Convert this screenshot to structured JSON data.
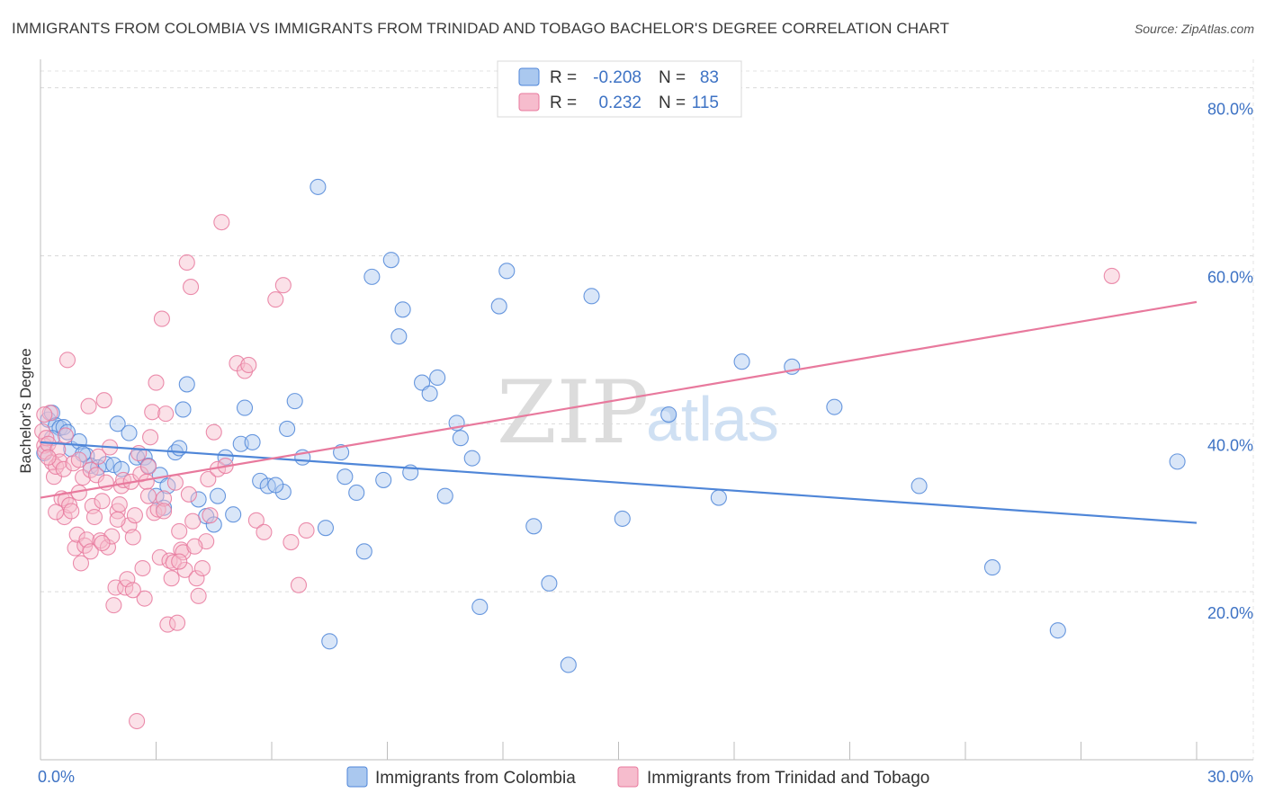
{
  "title": "IMMIGRANTS FROM COLOMBIA VS IMMIGRANTS FROM TRINIDAD AND TOBAGO BACHELOR'S DEGREE CORRELATION CHART",
  "source": "Source: ZipAtlas.com",
  "watermark": {
    "zip": "ZIP",
    "atlas": "atlas"
  },
  "legend": {
    "r_label": "R =",
    "n_label": "N =",
    "rows": [
      {
        "r": "-0.208",
        "n": "83",
        "fill": "#aac8ef",
        "stroke": "#4f86d8"
      },
      {
        "r": "0.232",
        "n": "115",
        "fill": "#f6bccd",
        "stroke": "#e8799d"
      }
    ]
  },
  "chart_data": {
    "type": "scatter",
    "title": "IMMIGRANTS FROM COLOMBIA VS IMMIGRANTS FROM TRINIDAD AND TOBAGO BACHELOR'S DEGREE CORRELATION CHART",
    "xlabel": "",
    "ylabel": "Bachelor's Degree",
    "xlim": [
      0,
      30
    ],
    "ylim": [
      0,
      82
    ],
    "x_ticks_labeled": [
      "0.0%",
      "30.0%"
    ],
    "y_ticks": [
      20,
      40,
      60,
      80
    ],
    "y_tick_labels": [
      "20.0%",
      "40.0%",
      "60.0%",
      "80.0%"
    ],
    "grid": true,
    "legend_position": "top-center",
    "series": [
      {
        "name": "Immigrants from Colombia",
        "color": "#4f86d8",
        "fill": "#aac8ef",
        "r": -0.208,
        "n": 83,
        "trend": [
          [
            0,
            37.8
          ],
          [
            30,
            28.2
          ]
        ],
        "points": [
          [
            0.1,
            36.5
          ],
          [
            0.2,
            40.5
          ],
          [
            0.3,
            41.3
          ],
          [
            0.4,
            39.8
          ],
          [
            0.5,
            39.5
          ],
          [
            0.6,
            39.6
          ],
          [
            0.7,
            39.0
          ],
          [
            0.8,
            37.0
          ],
          [
            1.0,
            37.9
          ],
          [
            1.2,
            36.2
          ],
          [
            1.3,
            35.0
          ],
          [
            1.5,
            34.8
          ],
          [
            1.7,
            35.2
          ],
          [
            1.9,
            35.1
          ],
          [
            2.0,
            40.0
          ],
          [
            2.1,
            34.6
          ],
          [
            2.3,
            38.9
          ],
          [
            2.5,
            36.0
          ],
          [
            2.7,
            36.0
          ],
          [
            2.8,
            35.0
          ],
          [
            3.0,
            31.4
          ],
          [
            3.1,
            33.9
          ],
          [
            3.2,
            30.0
          ],
          [
            3.3,
            32.6
          ],
          [
            3.5,
            36.6
          ],
          [
            3.6,
            37.1
          ],
          [
            3.7,
            41.7
          ],
          [
            3.8,
            44.7
          ],
          [
            4.1,
            31.0
          ],
          [
            4.3,
            29.0
          ],
          [
            4.5,
            28.0
          ],
          [
            4.6,
            31.4
          ],
          [
            4.8,
            36.0
          ],
          [
            5.0,
            29.2
          ],
          [
            5.2,
            37.6
          ],
          [
            5.3,
            41.9
          ],
          [
            5.5,
            37.8
          ],
          [
            5.7,
            33.2
          ],
          [
            5.9,
            32.6
          ],
          [
            6.3,
            31.9
          ],
          [
            6.4,
            39.4
          ],
          [
            6.6,
            42.7
          ],
          [
            6.8,
            36.0
          ],
          [
            7.2,
            68.2
          ],
          [
            7.4,
            27.6
          ],
          [
            7.5,
            14.1
          ],
          [
            7.8,
            36.6
          ],
          [
            7.9,
            33.7
          ],
          [
            8.2,
            31.8
          ],
          [
            8.4,
            24.8
          ],
          [
            8.6,
            57.5
          ],
          [
            8.9,
            33.3
          ],
          [
            9.1,
            59.5
          ],
          [
            9.3,
            50.4
          ],
          [
            9.6,
            34.2
          ],
          [
            9.9,
            44.9
          ],
          [
            10.1,
            43.6
          ],
          [
            10.3,
            45.5
          ],
          [
            10.5,
            31.4
          ],
          [
            10.8,
            40.1
          ],
          [
            10.9,
            38.3
          ],
          [
            11.2,
            35.9
          ],
          [
            11.4,
            18.2
          ],
          [
            12.1,
            58.2
          ],
          [
            12.8,
            27.8
          ],
          [
            13.2,
            21.0
          ],
          [
            13.7,
            11.3
          ],
          [
            14.3,
            55.2
          ],
          [
            15.1,
            28.7
          ],
          [
            16.3,
            41.1
          ],
          [
            17.6,
            31.2
          ],
          [
            18.2,
            47.4
          ],
          [
            19.5,
            46.8
          ],
          [
            20.6,
            42.0
          ],
          [
            22.8,
            32.6
          ],
          [
            24.7,
            22.9
          ],
          [
            26.4,
            15.4
          ],
          [
            29.5,
            35.5
          ],
          [
            0.3,
            38.3
          ],
          [
            1.1,
            36.4
          ],
          [
            6.1,
            32.7
          ],
          [
            9.4,
            53.6
          ],
          [
            11.9,
            54.0
          ]
        ]
      },
      {
        "name": "Immigrants from Trinidad and Tobago",
        "color": "#e8799d",
        "fill": "#f6bccd",
        "r": 0.232,
        "n": 115,
        "trend": [
          [
            0,
            31.2
          ],
          [
            30,
            54.5
          ]
        ],
        "points": [
          [
            0.05,
            39.1
          ],
          [
            0.1,
            37.4
          ],
          [
            0.12,
            36.7
          ],
          [
            0.15,
            38.3
          ],
          [
            0.2,
            37.6
          ],
          [
            0.25,
            41.3
          ],
          [
            0.3,
            35.4
          ],
          [
            0.35,
            33.7
          ],
          [
            0.4,
            34.9
          ],
          [
            0.45,
            36.9
          ],
          [
            0.5,
            35.5
          ],
          [
            0.55,
            31.1
          ],
          [
            0.6,
            34.6
          ],
          [
            0.62,
            28.9
          ],
          [
            0.65,
            30.9
          ],
          [
            0.7,
            47.6
          ],
          [
            0.75,
            30.3
          ],
          [
            0.8,
            29.6
          ],
          [
            0.85,
            35.3
          ],
          [
            0.9,
            25.2
          ],
          [
            0.95,
            26.8
          ],
          [
            1.0,
            35.7
          ],
          [
            1.05,
            23.4
          ],
          [
            1.1,
            33.6
          ],
          [
            1.15,
            25.5
          ],
          [
            1.2,
            26.2
          ],
          [
            1.25,
            42.1
          ],
          [
            1.3,
            34.5
          ],
          [
            1.35,
            30.2
          ],
          [
            1.4,
            28.9
          ],
          [
            1.45,
            33.9
          ],
          [
            1.5,
            36.1
          ],
          [
            1.55,
            26.1
          ],
          [
            1.6,
            30.8
          ],
          [
            1.65,
            42.8
          ],
          [
            1.7,
            33.0
          ],
          [
            1.75,
            25.3
          ],
          [
            1.8,
            37.2
          ],
          [
            1.85,
            26.6
          ],
          [
            1.9,
            18.4
          ],
          [
            1.95,
            20.5
          ],
          [
            2.0,
            29.6
          ],
          [
            2.05,
            30.4
          ],
          [
            2.1,
            32.6
          ],
          [
            2.15,
            33.3
          ],
          [
            2.2,
            20.5
          ],
          [
            2.25,
            21.5
          ],
          [
            2.3,
            27.9
          ],
          [
            2.35,
            33.1
          ],
          [
            2.4,
            26.5
          ],
          [
            2.45,
            29.1
          ],
          [
            2.5,
            4.6
          ],
          [
            2.55,
            36.5
          ],
          [
            2.6,
            34.0
          ],
          [
            2.65,
            22.8
          ],
          [
            2.7,
            19.2
          ],
          [
            2.75,
            33.1
          ],
          [
            2.8,
            34.9
          ],
          [
            2.85,
            38.4
          ],
          [
            2.9,
            41.4
          ],
          [
            2.95,
            29.4
          ],
          [
            3.0,
            44.9
          ],
          [
            3.05,
            29.8
          ],
          [
            3.1,
            24.1
          ],
          [
            3.15,
            52.5
          ],
          [
            3.2,
            31.1
          ],
          [
            3.25,
            41.2
          ],
          [
            3.3,
            16.1
          ],
          [
            3.35,
            23.7
          ],
          [
            3.4,
            21.6
          ],
          [
            3.45,
            23.5
          ],
          [
            3.5,
            33.0
          ],
          [
            3.55,
            16.3
          ],
          [
            3.6,
            27.2
          ],
          [
            3.65,
            25.0
          ],
          [
            3.7,
            24.7
          ],
          [
            3.75,
            22.6
          ],
          [
            3.8,
            59.2
          ],
          [
            3.85,
            31.6
          ],
          [
            3.9,
            56.3
          ],
          [
            3.95,
            28.4
          ],
          [
            4.05,
            21.6
          ],
          [
            4.1,
            19.5
          ],
          [
            4.2,
            22.8
          ],
          [
            4.3,
            26.0
          ],
          [
            4.35,
            33.4
          ],
          [
            4.4,
            29.1
          ],
          [
            4.5,
            39.0
          ],
          [
            4.6,
            34.6
          ],
          [
            4.7,
            64.0
          ],
          [
            4.8,
            35.0
          ],
          [
            5.1,
            47.2
          ],
          [
            5.3,
            46.3
          ],
          [
            5.4,
            47.0
          ],
          [
            5.6,
            28.5
          ],
          [
            5.8,
            27.1
          ],
          [
            6.1,
            54.8
          ],
          [
            6.3,
            56.5
          ],
          [
            6.5,
            25.9
          ],
          [
            6.7,
            20.8
          ],
          [
            6.9,
            27.3
          ],
          [
            0.1,
            41.1
          ],
          [
            0.4,
            29.5
          ],
          [
            0.65,
            38.6
          ],
          [
            1.0,
            31.8
          ],
          [
            1.3,
            24.8
          ],
          [
            1.6,
            25.8
          ],
          [
            2.0,
            28.6
          ],
          [
            2.4,
            20.2
          ],
          [
            2.8,
            31.4
          ],
          [
            3.2,
            29.6
          ],
          [
            3.6,
            23.6
          ],
          [
            4.0,
            25.4
          ],
          [
            27.8,
            57.6
          ],
          [
            0.2,
            36.0
          ]
        ]
      }
    ]
  },
  "bottom_legend": [
    {
      "label": "Immigrants from Colombia",
      "fill": "#aac8ef",
      "stroke": "#4f86d8"
    },
    {
      "label": "Immigrants from Trinidad and Tobago",
      "fill": "#f6bccd",
      "stroke": "#e8799d"
    }
  ]
}
